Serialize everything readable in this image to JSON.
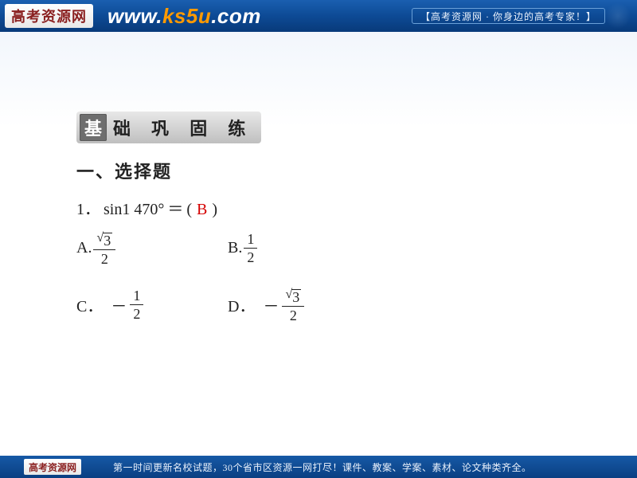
{
  "header": {
    "logo_text": "高考资源网",
    "url_pre": "www.",
    "url_mid": "ks5u",
    "url_post": ".com",
    "tagline": "【高考资源网 · 你身边的高考专家！】"
  },
  "badge": {
    "square_char": "基",
    "rest_text": "础 巩 固 练"
  },
  "section": {
    "title": "一、选择题"
  },
  "question": {
    "number": "1．",
    "expr_left": "sin1 470°",
    "equals": "＝",
    "paren_open": "(",
    "answer": "B",
    "paren_close": ")"
  },
  "options": {
    "a": {
      "letter": "A.",
      "neg": "",
      "sqrt_num": "3",
      "den": "2"
    },
    "b": {
      "letter": "B.",
      "neg": "",
      "num": "1",
      "den": "2"
    },
    "c": {
      "letter": "C．",
      "neg": "－",
      "num": "1",
      "den": "2"
    },
    "d": {
      "letter": "D．",
      "neg": "－",
      "sqrt_num": "3",
      "den": "2"
    }
  },
  "footer": {
    "logo_text": "高考资源网",
    "text": "第一时间更新名校试题，30个省市区资源一网打尽！课件、教案、学案、素材、论文种类齐全。"
  },
  "colors": {
    "accent_red": "#d40000",
    "header_blue": "#0d4a95"
  }
}
